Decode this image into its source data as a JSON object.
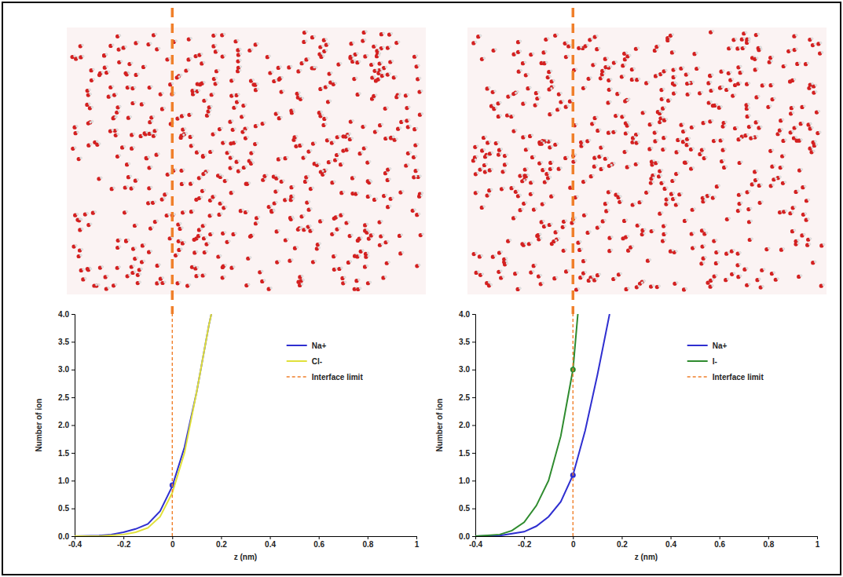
{
  "chart_data": [
    {
      "type": "line",
      "x_label": "z (nm)",
      "y_label": "Number of ion",
      "xlim": [
        -0.4,
        1
      ],
      "xticks": [
        -0.4,
        -0.2,
        0,
        0.2,
        0.4,
        0.6,
        0.8,
        1
      ],
      "ylim": [
        0,
        4
      ],
      "yticks": [
        {
          "value": 0,
          "label": "0.0"
        },
        {
          "value": 0.5,
          "label": "0.5"
        },
        {
          "value": 1,
          "label": "1.0"
        },
        {
          "value": 1.5,
          "label": "1.5"
        },
        {
          "value": 2,
          "label": "2.0"
        },
        {
          "value": 2.5,
          "label": "2.5"
        },
        {
          "value": 3,
          "label": "3.0"
        },
        {
          "value": 3.5,
          "label": "3.5"
        },
        {
          "value": 4,
          "label": "4.0"
        }
      ],
      "grid": false,
      "legend": "upper right",
      "series": [
        {
          "name": "Na+",
          "color": "#2f2fd0",
          "x": [
            -0.4,
            -0.3,
            -0.25,
            -0.2,
            -0.15,
            -0.1,
            -0.05,
            0,
            0.05,
            0.1,
            0.15,
            0.16
          ],
          "values": [
            0,
            0.01,
            0.03,
            0.07,
            0.13,
            0.22,
            0.45,
            0.9,
            1.6,
            2.6,
            3.8,
            4.0
          ],
          "highlight": {
            "x": 0,
            "y": 0.92
          }
        },
        {
          "name": "Cl-",
          "color": "#e0e03a",
          "x": [
            -0.4,
            -0.3,
            -0.2,
            -0.15,
            -0.1,
            -0.05,
            0,
            0.05,
            0.1,
            0.15,
            0.16
          ],
          "values": [
            0,
            0,
            0.03,
            0.07,
            0.15,
            0.35,
            0.78,
            1.5,
            2.6,
            3.8,
            4.0
          ]
        },
        {
          "name": "Interface limit",
          "color": "#f07f2a",
          "line_style": "dashed",
          "x": [
            0,
            0
          ],
          "values": [
            0,
            4
          ]
        }
      ]
    },
    {
      "type": "line",
      "x_label": "z (nm)",
      "y_label": "Number of ion",
      "xlim": [
        -0.4,
        1
      ],
      "xticks": [
        -0.4,
        -0.2,
        0,
        0.2,
        0.4,
        0.6,
        0.8,
        1
      ],
      "ylim": [
        0,
        4
      ],
      "yticks": [
        {
          "value": 0,
          "label": "0.0"
        },
        {
          "value": 0.5,
          "label": "0.5"
        },
        {
          "value": 1,
          "label": "1.0"
        },
        {
          "value": 1.5,
          "label": "1.5"
        },
        {
          "value": 2,
          "label": "2.0"
        },
        {
          "value": 2.5,
          "label": "2.5"
        },
        {
          "value": 3,
          "label": "3.0"
        },
        {
          "value": 3.5,
          "label": "3.5"
        },
        {
          "value": 4,
          "label": "4.0"
        }
      ],
      "grid": false,
      "legend": "upper right",
      "series": [
        {
          "name": "Na+",
          "color": "#2f2fd0",
          "x": [
            -0.4,
            -0.3,
            -0.2,
            -0.15,
            -0.1,
            -0.05,
            0,
            0.05,
            0.1,
            0.15
          ],
          "values": [
            0,
            0.01,
            0.08,
            0.18,
            0.35,
            0.62,
            1.1,
            1.9,
            2.9,
            4.0
          ],
          "highlight": {
            "x": 0,
            "y": 1.1
          }
        },
        {
          "name": "I-",
          "color": "#2e8b2e",
          "x": [
            -0.4,
            -0.3,
            -0.25,
            -0.2,
            -0.15,
            -0.1,
            -0.05,
            0,
            0.02
          ],
          "values": [
            0,
            0.03,
            0.1,
            0.25,
            0.55,
            1.0,
            1.8,
            3.0,
            4.0
          ],
          "highlight": {
            "x": 0,
            "y": 3.0
          }
        },
        {
          "name": "Interface limit",
          "color": "#f07f2a",
          "line_style": "dashed",
          "x": [
            0,
            0
          ],
          "values": [
            0,
            4
          ]
        }
      ]
    }
  ]
}
